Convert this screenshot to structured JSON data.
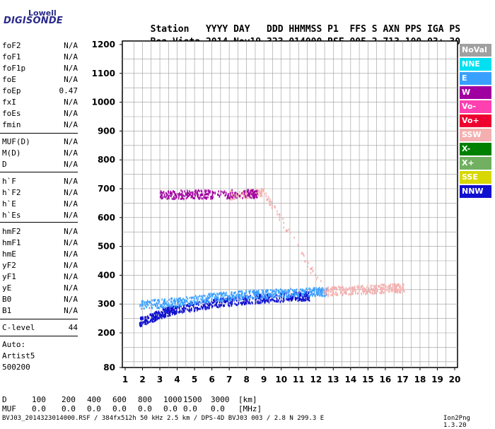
{
  "logo": {
    "top": "Lowell",
    "bottom": "DIGISONDE"
  },
  "header": {
    "labels": [
      "Station",
      "YYYY",
      "DAY",
      "DDD",
      "HHMMSS",
      "P1",
      "FFS",
      "S",
      "AXN",
      "PPS",
      "IGA",
      "PS"
    ],
    "values": [
      "Boa Vista",
      "2014",
      "Nov19",
      "323",
      "014000",
      "RSF",
      "005",
      "2",
      "713",
      "100",
      "03+",
      "30"
    ]
  },
  "params": {
    "group1": [
      {
        "label": "foF2",
        "value": "N/A"
      },
      {
        "label": "foF1",
        "value": "N/A"
      },
      {
        "label": "foF1p",
        "value": "N/A"
      },
      {
        "label": "foE",
        "value": "N/A"
      },
      {
        "label": "foEp",
        "value": "0.47"
      },
      {
        "label": "fxI",
        "value": "N/A"
      },
      {
        "label": "foEs",
        "value": "N/A"
      },
      {
        "label": "fmin",
        "value": "N/A"
      }
    ],
    "group2": [
      {
        "label": "MUF(D)",
        "value": "N/A"
      },
      {
        "label": "M(D)",
        "value": "N/A"
      },
      {
        "label": "D",
        "value": "N/A"
      }
    ],
    "group3": [
      {
        "label": "h`F",
        "value": "N/A"
      },
      {
        "label": "h`F2",
        "value": "N/A"
      },
      {
        "label": "h`E",
        "value": "N/A"
      },
      {
        "label": "h`Es",
        "value": "N/A"
      }
    ],
    "group4": [
      {
        "label": "hmF2",
        "value": "N/A"
      },
      {
        "label": "hmF1",
        "value": "N/A"
      },
      {
        "label": "hmE",
        "value": "N/A"
      },
      {
        "label": "yF2",
        "value": "N/A"
      },
      {
        "label": "yF1",
        "value": "N/A"
      },
      {
        "label": "yE",
        "value": "N/A"
      },
      {
        "label": "B0",
        "value": "N/A"
      },
      {
        "label": "B1",
        "value": "N/A"
      }
    ],
    "clevel": {
      "label": "C-level",
      "value": "44"
    },
    "auto": [
      "Auto:",
      "Artist5",
      "500200"
    ]
  },
  "legend": [
    {
      "label": "NoVal",
      "bg": "#a0a0a0",
      "fg": "#ffffff"
    },
    {
      "label": "NNE",
      "bg": "#00e0f0",
      "fg": "#ffffff"
    },
    {
      "label": "E",
      "bg": "#3aa0ff",
      "fg": "#ffffff"
    },
    {
      "label": "W",
      "bg": "#a000a0",
      "fg": "#ffffff"
    },
    {
      "label": "Vo-",
      "bg": "#ff40b0",
      "fg": "#ffffff"
    },
    {
      "label": "Vo+",
      "bg": "#ee0030",
      "fg": "#ffffff"
    },
    {
      "label": "SSW",
      "bg": "#f4b0b0",
      "fg": "#ffffff"
    },
    {
      "label": "X-",
      "bg": "#008000",
      "fg": "#ffffff"
    },
    {
      "label": "X+",
      "bg": "#70b060",
      "fg": "#ffffff"
    },
    {
      "label": "SSE",
      "bg": "#d8d800",
      "fg": "#ffffff"
    },
    {
      "label": "NNW",
      "bg": "#1010d0",
      "fg": "#ffffff"
    }
  ],
  "chart_data": {
    "type": "scatter",
    "x_ticks": [
      "1",
      "2",
      "3",
      "4",
      "5",
      "6",
      "7",
      "8",
      "9",
      "10",
      "11",
      "12",
      "13",
      "14",
      "15",
      "16",
      "17",
      "18",
      "19",
      "20"
    ],
    "y_ticks": [
      "1200",
      "1100",
      "1000",
      "900",
      "800",
      "700",
      "600",
      "500",
      "400",
      "300",
      "200",
      "80"
    ],
    "xlim": [
      1,
      20
    ],
    "ylim": [
      80,
      1200
    ],
    "grid": true,
    "legend_position": "right",
    "traces": [
      {
        "name": "NNW",
        "x": [
          1.8,
          2.5,
          3.0,
          3.5,
          4.0,
          5.0,
          6.0,
          7.0,
          8.0,
          9.0,
          10.0,
          11.0
        ],
        "y": [
          240,
          255,
          268,
          278,
          285,
          295,
          305,
          312,
          318,
          323,
          326,
          330
        ]
      },
      {
        "name": "E",
        "x": [
          1.8,
          3.0,
          4.0,
          5.0,
          6.0,
          7.0,
          8.0,
          9.0,
          10.0,
          11.0,
          12.0
        ],
        "y": [
          300,
          305,
          310,
          318,
          325,
          330,
          335,
          338,
          340,
          342,
          345
        ]
      },
      {
        "name": "SSW",
        "x": [
          7.0,
          8.0,
          9.0,
          12.5,
          13.5,
          14.5,
          15.5,
          16.5
        ],
        "y": [
          680,
          685,
          690,
          345,
          350,
          352,
          355,
          358
        ]
      },
      {
        "name": "W",
        "x": [
          3.0,
          4.0,
          5.0,
          6.0,
          8.0
        ],
        "y": [
          680,
          682,
          683,
          683,
          685
        ]
      }
    ]
  },
  "scale": {
    "row1_label": "D",
    "row1_values": [
      "100",
      "200",
      "400",
      "600",
      "800",
      "1000",
      "1500",
      "3000",
      "[km]"
    ],
    "row2_label": "MUF",
    "row2_values": [
      "0.0",
      "0.0",
      "0.0",
      "0.0",
      "0.0",
      "0.0",
      "0.0",
      "0.0",
      "[MHz]"
    ]
  },
  "footer": {
    "left": "BVJ03_2014323014000.RSF / 384fx512h 50 kHz 2.5 km / DPS-4D BVJ03 003 / 2.8 N 299.3 E",
    "right": "Ion2Png 1.3.20"
  }
}
